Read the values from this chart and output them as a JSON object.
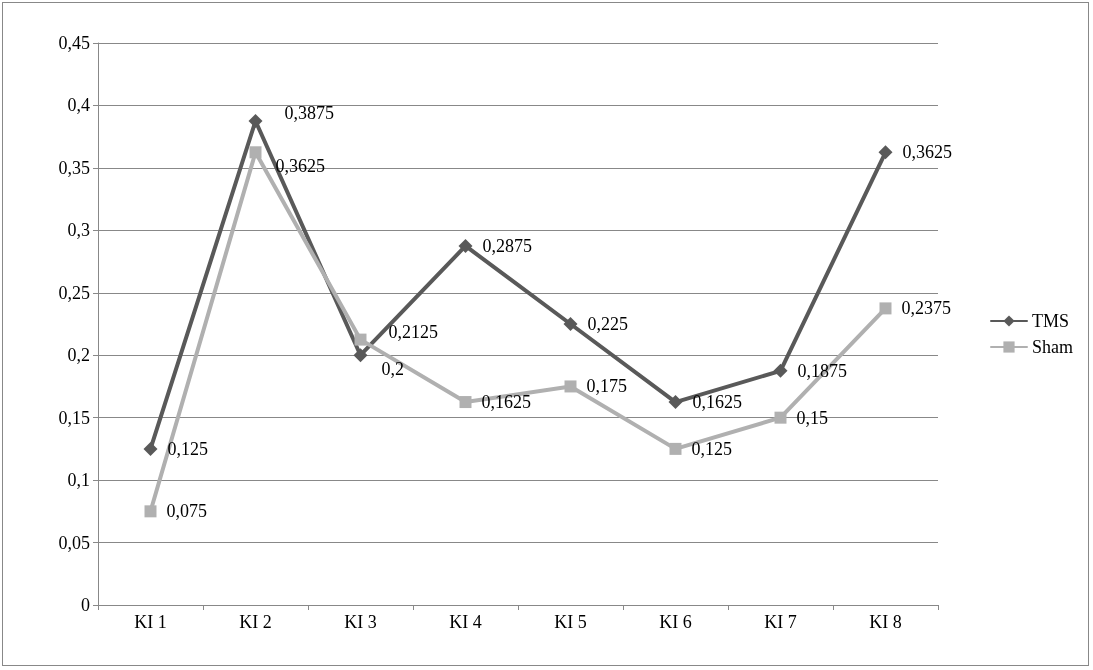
{
  "chart_data": {
    "type": "line",
    "categories": [
      "KI 1",
      "KI 2",
      "KI 3",
      "KI 4",
      "KI 5",
      "KI 6",
      "KI 7",
      "KI 8"
    ],
    "series": [
      {
        "name": "TMS",
        "color": "#595959",
        "marker": "diamond",
        "values": [
          0.125,
          0.3875,
          0.2,
          0.2875,
          0.225,
          0.1625,
          0.1875,
          0.3625
        ],
        "value_labels": [
          "0,125",
          "0,3875",
          "0,2",
          "0,2875",
          "0,225",
          "0,1625",
          "0,1875",
          "0,3625"
        ]
      },
      {
        "name": "Sham",
        "color": "#b0b0b0",
        "marker": "square",
        "values": [
          0.075,
          0.3625,
          0.2125,
          0.1625,
          0.175,
          0.125,
          0.15,
          0.2375
        ],
        "value_labels": [
          "0,075",
          "0,3625",
          "0,2125",
          "0,1625",
          "0,175",
          "0,125",
          "0,15",
          "0,2375"
        ]
      }
    ],
    "ylim": [
      0,
      0.45
    ],
    "yticks": [
      {
        "value": 0,
        "label": "0"
      },
      {
        "value": 0.05,
        "label": "0,05"
      },
      {
        "value": 0.1,
        "label": "0,1"
      },
      {
        "value": 0.15,
        "label": "0,15"
      },
      {
        "value": 0.2,
        "label": "0,2"
      },
      {
        "value": 0.25,
        "label": "0,25"
      },
      {
        "value": 0.3,
        "label": "0,3"
      },
      {
        "value": 0.35,
        "label": "0,35"
      },
      {
        "value": 0.4,
        "label": "0,4"
      },
      {
        "value": 0.45,
        "label": "0,45"
      }
    ],
    "grid": "y",
    "legend": "right",
    "line_style": "solid"
  }
}
